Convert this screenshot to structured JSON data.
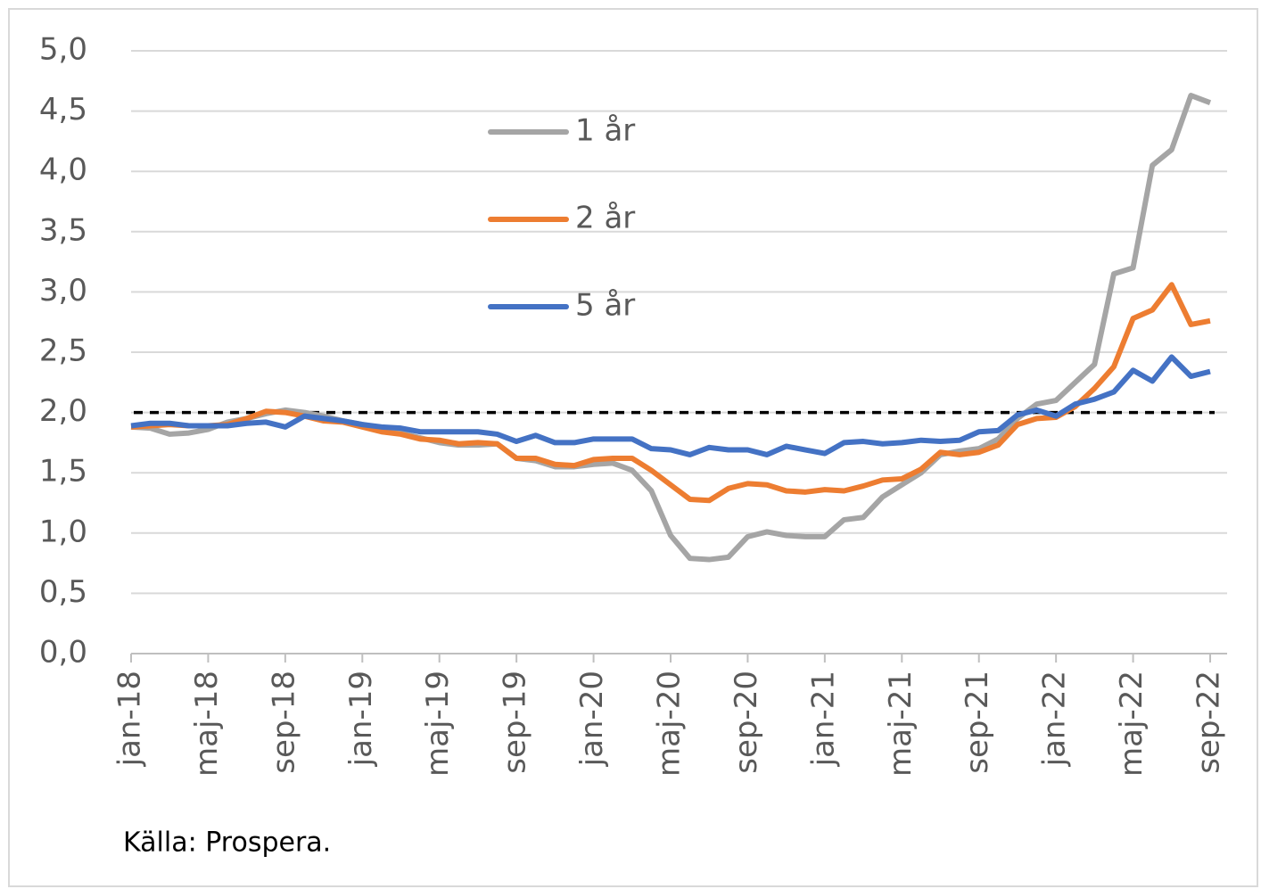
{
  "chart_data": {
    "type": "line",
    "categories": [
      "jan-18",
      null,
      null,
      null,
      "maj-18",
      null,
      null,
      null,
      "sep-18",
      null,
      null,
      null,
      "jan-19",
      null,
      null,
      null,
      "maj-19",
      null,
      null,
      null,
      "sep-19",
      null,
      null,
      null,
      "jan-20",
      null,
      null,
      null,
      "maj-20",
      null,
      null,
      null,
      "sep-20",
      null,
      null,
      null,
      "jan-21",
      null,
      null,
      null,
      "maj-21",
      null,
      null,
      null,
      "sep-21",
      null,
      null,
      null,
      "jan-22",
      null,
      null,
      null,
      "maj-22",
      null,
      null,
      null,
      "sep-22"
    ],
    "series": [
      {
        "name": "1 år",
        "color": "#a5a5a5",
        "values": [
          1.88,
          1.87,
          1.82,
          1.83,
          1.86,
          1.92,
          1.95,
          1.99,
          2.02,
          2.0,
          1.97,
          1.93,
          1.9,
          1.87,
          1.83,
          1.79,
          1.75,
          1.73,
          1.73,
          1.74,
          1.62,
          1.6,
          1.55,
          1.55,
          1.57,
          1.58,
          1.52,
          1.35,
          0.98,
          0.79,
          0.78,
          0.8,
          0.97,
          1.01,
          0.98,
          0.97,
          0.97,
          1.11,
          1.13,
          1.3,
          1.4,
          1.5,
          1.65,
          1.68,
          1.7,
          1.78,
          1.95,
          2.07,
          2.1,
          2.25,
          2.4,
          3.15,
          3.2,
          4.05,
          4.18,
          4.63,
          4.57
        ]
      },
      {
        "name": "2 år",
        "color": "#ed7d31",
        "values": [
          1.88,
          1.89,
          1.9,
          1.89,
          1.89,
          1.9,
          1.95,
          2.01,
          2.0,
          1.97,
          1.93,
          1.92,
          1.88,
          1.84,
          1.82,
          1.78,
          1.77,
          1.74,
          1.75,
          1.74,
          1.62,
          1.62,
          1.57,
          1.56,
          1.61,
          1.62,
          1.62,
          1.52,
          1.4,
          1.28,
          1.27,
          1.37,
          1.41,
          1.4,
          1.35,
          1.34,
          1.36,
          1.35,
          1.39,
          1.44,
          1.45,
          1.53,
          1.67,
          1.65,
          1.67,
          1.73,
          1.9,
          1.95,
          1.96,
          2.05,
          2.2,
          2.38,
          2.78,
          2.85,
          3.06,
          2.73,
          2.76
        ]
      },
      {
        "name": "5 år",
        "color": "#4472c4",
        "values": [
          1.89,
          1.91,
          1.91,
          1.89,
          1.89,
          1.89,
          1.91,
          1.92,
          1.88,
          1.97,
          1.95,
          1.93,
          1.9,
          1.88,
          1.87,
          1.84,
          1.84,
          1.84,
          1.84,
          1.82,
          1.76,
          1.81,
          1.75,
          1.75,
          1.78,
          1.78,
          1.78,
          1.7,
          1.69,
          1.65,
          1.71,
          1.69,
          1.69,
          1.65,
          1.72,
          1.69,
          1.66,
          1.75,
          1.76,
          1.74,
          1.75,
          1.77,
          1.76,
          1.77,
          1.84,
          1.85,
          1.98,
          2.02,
          1.97,
          2.07,
          2.11,
          2.17,
          2.35,
          2.26,
          2.46,
          2.3,
          2.34
        ]
      }
    ],
    "ylim": [
      0,
      5
    ],
    "yticks": [
      {
        "value": 0,
        "label": "0,0"
      },
      {
        "value": 0.5,
        "label": "0,5"
      },
      {
        "value": 1,
        "label": "1,0"
      },
      {
        "value": 1.5,
        "label": "1,5"
      },
      {
        "value": 2,
        "label": "2,0"
      },
      {
        "value": 2.5,
        "label": "2,5"
      },
      {
        "value": 3,
        "label": "3,0"
      },
      {
        "value": 3.5,
        "label": "3,5"
      },
      {
        "value": 4,
        "label": "4,0"
      },
      {
        "value": 4.5,
        "label": "4,5"
      },
      {
        "value": 5,
        "label": "5,0"
      }
    ],
    "grid": true,
    "reference_line": 2,
    "source": "Källa: Prospera."
  }
}
